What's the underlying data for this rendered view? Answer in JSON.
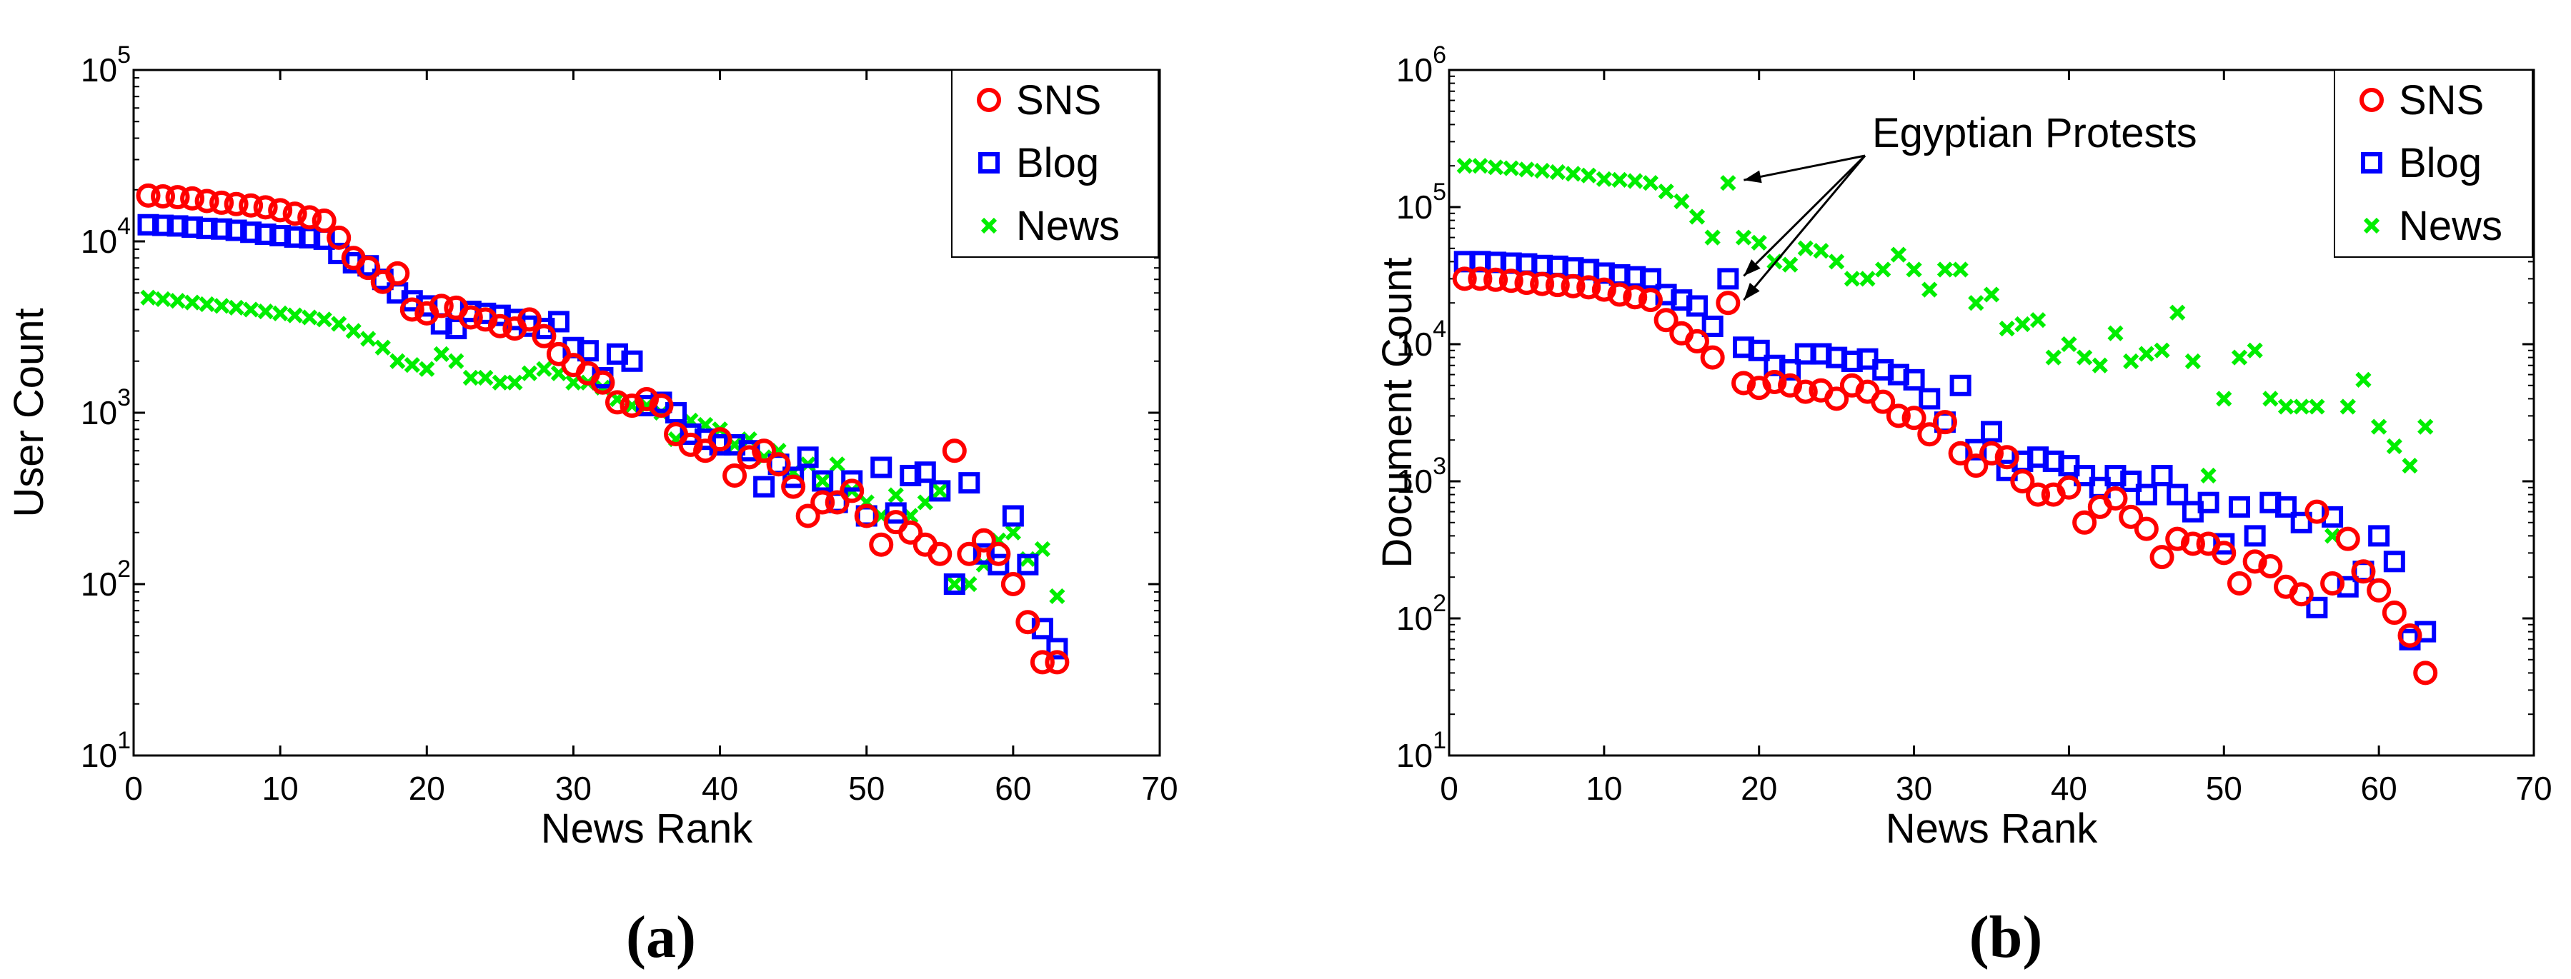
{
  "colors": {
    "SNS": "#ff0000",
    "Blog": "#0000ff",
    "News": "#00ee00"
  },
  "chart_data": [
    {
      "type": "scatter",
      "panel_label": "a",
      "title": "",
      "xlabel": "News Rank",
      "ylabel": "User Count",
      "xlim": [
        0,
        70
      ],
      "ylim": [
        10,
        100000
      ],
      "yscale": "log",
      "x_ticks": [
        "0",
        "10",
        "20",
        "30",
        "40",
        "50",
        "60",
        "70"
      ],
      "y_ticks": [
        {
          "base": "10",
          "exp": "1"
        },
        {
          "base": "10",
          "exp": "2"
        },
        {
          "base": "10",
          "exp": "3"
        },
        {
          "base": "10",
          "exp": "4"
        },
        {
          "base": "10",
          "exp": "5"
        }
      ],
      "legend_position": "top-right",
      "annotation": null,
      "series": [
        {
          "name": "SNS",
          "marker": "circle",
          "color": "#ff0000",
          "x": [
            1,
            2,
            3,
            4,
            5,
            6,
            7,
            8,
            9,
            10,
            11,
            12,
            13,
            14,
            15,
            16,
            17,
            18,
            19,
            20,
            21,
            22,
            23,
            24,
            25,
            26,
            27,
            28,
            29,
            30,
            31,
            32,
            33,
            34,
            35,
            36,
            37,
            38,
            39,
            40,
            41,
            42,
            43,
            44,
            45,
            46,
            47,
            48,
            49,
            50,
            51,
            52,
            53,
            54,
            55,
            56,
            57,
            58,
            59,
            60,
            61,
            62,
            63
          ],
          "y": [
            18500,
            18300,
            18100,
            17800,
            17200,
            16800,
            16500,
            16200,
            15800,
            15200,
            14500,
            13800,
            13200,
            10500,
            8000,
            7000,
            5800,
            6500,
            4000,
            3800,
            4200,
            4100,
            3600,
            3500,
            3200,
            3100,
            3500,
            2800,
            2200,
            1900,
            1700,
            1500,
            1150,
            1100,
            1200,
            1100,
            750,
            650,
            600,
            700,
            430,
            550,
            600,
            500,
            370,
            250,
            300,
            300,
            350,
            250,
            170,
            230,
            200,
            170,
            150,
            600,
            150,
            180,
            150,
            100,
            60,
            35,
            35
          ]
        },
        {
          "name": "Blog",
          "marker": "square",
          "color": "#0000ff",
          "x": [
            1,
            2,
            3,
            4,
            5,
            6,
            7,
            8,
            9,
            10,
            11,
            12,
            13,
            14,
            15,
            16,
            17,
            18,
            19,
            20,
            21,
            22,
            23,
            24,
            25,
            26,
            27,
            28,
            29,
            30,
            31,
            32,
            33,
            34,
            35,
            36,
            37,
            38,
            39,
            40,
            41,
            42,
            43,
            44,
            45,
            46,
            47,
            48,
            49,
            50,
            51,
            52,
            53,
            54,
            55,
            56,
            57,
            58,
            59,
            60,
            61,
            62,
            63
          ],
          "y": [
            12500,
            12400,
            12300,
            12100,
            11900,
            11800,
            11600,
            11300,
            11000,
            10800,
            10600,
            10500,
            10300,
            8500,
            7500,
            7200,
            6000,
            5000,
            4500,
            4200,
            3300,
            3100,
            3900,
            3800,
            3700,
            3500,
            3200,
            3100,
            3400,
            2400,
            2300,
            1600,
            2200,
            2000,
            1100,
            1150,
            1000,
            750,
            700,
            650,
            650,
            600,
            370,
            500,
            420,
            550,
            400,
            300,
            400,
            250,
            480,
            260,
            430,
            450,
            350,
            100,
            390,
            150,
            130,
            250,
            130,
            55,
            42
          ]
        },
        {
          "name": "News",
          "marker": "x",
          "color": "#00ee00",
          "x": [
            1,
            2,
            3,
            4,
            5,
            6,
            7,
            8,
            9,
            10,
            11,
            12,
            13,
            14,
            15,
            16,
            17,
            18,
            19,
            20,
            21,
            22,
            23,
            24,
            25,
            26,
            27,
            28,
            29,
            30,
            31,
            32,
            33,
            34,
            35,
            36,
            37,
            38,
            39,
            40,
            41,
            42,
            43,
            44,
            45,
            46,
            47,
            48,
            49,
            50,
            51,
            52,
            53,
            54,
            55,
            56,
            57,
            58,
            59,
            60,
            61,
            62,
            63
          ],
          "y": [
            4700,
            4600,
            4500,
            4400,
            4300,
            4200,
            4100,
            4000,
            3900,
            3800,
            3700,
            3600,
            3500,
            3300,
            3000,
            2700,
            2400,
            2000,
            1900,
            1800,
            2200,
            2000,
            1600,
            1600,
            1500,
            1500,
            1700,
            1800,
            1700,
            1500,
            1500,
            1400,
            1200,
            1100,
            1100,
            1000,
            700,
            900,
            850,
            800,
            650,
            700,
            550,
            600,
            450,
            500,
            400,
            500,
            350,
            300,
            250,
            330,
            250,
            300,
            350,
            100,
            100,
            130,
            180,
            200,
            140,
            160,
            85
          ]
        }
      ]
    },
    {
      "type": "scatter",
      "panel_label": "b",
      "title": "",
      "xlabel": "News Rank",
      "ylabel": "Document Count",
      "xlim": [
        0,
        70
      ],
      "ylim": [
        10,
        1000000
      ],
      "yscale": "log",
      "x_ticks": [
        "0",
        "10",
        "20",
        "30",
        "40",
        "50",
        "60",
        "70"
      ],
      "y_ticks": [
        {
          "base": "10",
          "exp": "1"
        },
        {
          "base": "10",
          "exp": "2"
        },
        {
          "base": "10",
          "exp": "3"
        },
        {
          "base": "10",
          "exp": "4"
        },
        {
          "base": "10",
          "exp": "5"
        },
        {
          "base": "10",
          "exp": "6"
        }
      ],
      "legend_position": "top-right",
      "annotation": {
        "text": "Egyptian Protests",
        "x": 18,
        "targets": [
          {
            "series": "News",
            "y": 150000
          },
          {
            "series": "Blog",
            "y": 30000
          },
          {
            "series": "SNS",
            "y": 20000
          }
        ]
      },
      "series": [
        {
          "name": "SNS",
          "marker": "circle",
          "color": "#ff0000",
          "x": [
            1,
            2,
            3,
            4,
            5,
            6,
            7,
            8,
            9,
            10,
            11,
            12,
            13,
            14,
            15,
            16,
            17,
            18,
            19,
            20,
            21,
            22,
            23,
            24,
            25,
            26,
            27,
            28,
            29,
            30,
            31,
            32,
            33,
            34,
            35,
            36,
            37,
            38,
            39,
            40,
            41,
            42,
            43,
            44,
            45,
            46,
            47,
            48,
            49,
            50,
            51,
            52,
            53,
            54,
            55,
            56,
            57,
            58,
            59,
            60,
            61,
            62,
            63
          ],
          "y": [
            30000,
            30000,
            29500,
            29000,
            28000,
            27500,
            27000,
            26500,
            26000,
            25000,
            23000,
            22000,
            21000,
            15000,
            12000,
            10500,
            8000,
            20000,
            5200,
            4800,
            5300,
            5000,
            4500,
            4600,
            4000,
            5000,
            4500,
            3800,
            3000,
            2900,
            2200,
            2700,
            1600,
            1300,
            1600,
            1500,
            1000,
            800,
            800,
            900,
            500,
            650,
            750,
            550,
            450,
            280,
            380,
            350,
            350,
            300,
            180,
            260,
            240,
            170,
            150,
            600,
            180,
            380,
            220,
            160,
            110,
            75,
            40
          ]
        },
        {
          "name": "Blog",
          "marker": "square",
          "color": "#0000ff",
          "x": [
            1,
            2,
            3,
            4,
            5,
            6,
            7,
            8,
            9,
            10,
            11,
            12,
            13,
            14,
            15,
            16,
            17,
            18,
            19,
            20,
            21,
            22,
            23,
            24,
            25,
            26,
            27,
            28,
            29,
            30,
            31,
            32,
            33,
            34,
            35,
            36,
            37,
            38,
            39,
            40,
            41,
            42,
            43,
            44,
            45,
            46,
            47,
            48,
            49,
            50,
            51,
            52,
            53,
            54,
            55,
            56,
            57,
            58,
            59,
            60,
            61,
            62,
            63
          ],
          "y": [
            40000,
            40000,
            39500,
            39000,
            38500,
            37500,
            37000,
            36000,
            35000,
            33000,
            32000,
            31000,
            30000,
            23000,
            21000,
            19000,
            13500,
            30000,
            9500,
            9000,
            7000,
            6500,
            8500,
            8500,
            8000,
            7500,
            7800,
            6500,
            6000,
            5500,
            4000,
            2700,
            5000,
            1700,
            2300,
            1200,
            1400,
            1500,
            1400,
            1300,
            1100,
            900,
            1100,
            1000,
            800,
            1100,
            800,
            600,
            700,
            350,
            650,
            400,
            700,
            650,
            500,
            120,
            550,
            170,
            220,
            400,
            260,
            70,
            80
          ]
        },
        {
          "name": "News",
          "marker": "x",
          "color": "#00ee00",
          "x": [
            1,
            2,
            3,
            4,
            5,
            6,
            7,
            8,
            9,
            10,
            11,
            12,
            13,
            14,
            15,
            16,
            17,
            18,
            19,
            20,
            21,
            22,
            23,
            24,
            25,
            26,
            27,
            28,
            29,
            30,
            31,
            32,
            33,
            34,
            35,
            36,
            37,
            38,
            39,
            40,
            41,
            42,
            43,
            44,
            45,
            46,
            47,
            48,
            49,
            50,
            51,
            52,
            53,
            54,
            55,
            56,
            57,
            58,
            59,
            60,
            61,
            62,
            63
          ],
          "y": [
            200000,
            200000,
            195000,
            192000,
            188000,
            184000,
            180000,
            175000,
            170000,
            160000,
            158000,
            155000,
            150000,
            130000,
            110000,
            85000,
            60000,
            150000,
            60000,
            55000,
            40000,
            38000,
            50000,
            48000,
            40000,
            30000,
            30000,
            35000,
            45000,
            35000,
            25000,
            35000,
            35000,
            20000,
            23000,
            13000,
            14000,
            15000,
            8000,
            10000,
            8000,
            7000,
            12000,
            7500,
            8500,
            9000,
            17000,
            7500,
            1100,
            4000,
            8000,
            9000,
            4000,
            3500,
            3500,
            3500,
            400,
            3500,
            5500,
            2500,
            1800,
            1300,
            2500
          ]
        }
      ]
    }
  ]
}
